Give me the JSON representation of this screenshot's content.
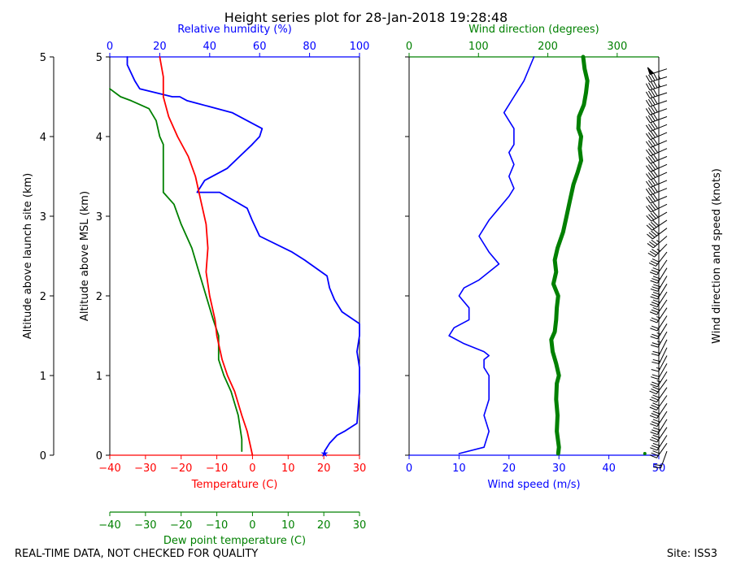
{
  "title": "Height series plot for 28-Jan-2018 19:28:48",
  "footer": {
    "left": "REAL-TIME DATA, NOT CHECKED FOR QUALITY",
    "right": "Site: ISS3"
  },
  "colors": {
    "temperature": "#ff0000",
    "dewpoint": "#008000",
    "humidity": "#0000ff",
    "wind_speed": "#0000ff",
    "wind_direction": "#008000",
    "barbs": "#000000"
  },
  "chart_data": [
    {
      "type": "line",
      "name": "thermo-panel",
      "outer_ylabel": "Altitude above launch site (km)",
      "ylabel": "Altitude above MSL (km)",
      "ylim": [
        0,
        5
      ],
      "yticks": [
        "0",
        "1",
        "2",
        "3",
        "4",
        "5"
      ],
      "x_top": {
        "label": "Relative humidity (%)",
        "range": [
          0,
          100
        ],
        "ticks": [
          "0",
          "20",
          "40",
          "60",
          "80",
          "100"
        ]
      },
      "x_bottom": {
        "label": "Temperature (C)",
        "range": [
          -40,
          30
        ],
        "ticks": [
          "−40",
          "−30",
          "−20",
          "−10",
          "0",
          "10",
          "20",
          "30"
        ]
      },
      "x_extra": {
        "label": "Dew point temperature (C)",
        "range": [
          -40,
          30
        ],
        "ticks": [
          "−40",
          "−30",
          "−20",
          "−10",
          "0",
          "10",
          "20",
          "30"
        ]
      },
      "series": [
        {
          "name": "Temperature",
          "color": "#ff0000",
          "x": [
            0,
            -1.5,
            -3,
            -5,
            -7,
            -8.5,
            -10,
            -10.5,
            -12,
            -13,
            -12.5,
            -13,
            -14.5,
            -16,
            -18,
            -21,
            -23.5,
            -25,
            -25,
            -26
          ],
          "y": [
            0,
            0.3,
            0.5,
            0.8,
            1.0,
            1.2,
            1.5,
            1.7,
            2.0,
            2.3,
            2.6,
            2.9,
            3.2,
            3.5,
            3.75,
            4.0,
            4.25,
            4.5,
            4.75,
            5.0
          ]
        },
        {
          "name": "Dew point temperature",
          "color": "#008000",
          "x": [
            -3,
            -3,
            -4,
            -6,
            -8,
            -9.5,
            -9.5,
            -11,
            -13,
            -15,
            -17,
            -20,
            -22,
            -25,
            -25,
            -25,
            -25,
            -26,
            -27,
            -29,
            -34,
            -37,
            -40
          ],
          "y": [
            0.05,
            0.2,
            0.5,
            0.8,
            1.0,
            1.2,
            1.5,
            1.7,
            2.0,
            2.3,
            2.6,
            2.9,
            3.15,
            3.3,
            3.5,
            3.7,
            3.9,
            4.0,
            4.2,
            4.35,
            4.45,
            4.5,
            4.6
          ]
        },
        {
          "name": "Relative humidity",
          "color": "#0000ff",
          "x": [
            86,
            88,
            91,
            94,
            99,
            100,
            100,
            99,
            100,
            100,
            93,
            90,
            88,
            87,
            78,
            73,
            60,
            57,
            55,
            44,
            35,
            38,
            47,
            52,
            57,
            60,
            61,
            58,
            49,
            31,
            28,
            25,
            12,
            10,
            7,
            7
          ],
          "y": [
            0.05,
            0.15,
            0.25,
            0.3,
            0.4,
            0.8,
            1.1,
            1.3,
            1.5,
            1.65,
            1.8,
            1.95,
            2.1,
            2.25,
            2.45,
            2.55,
            2.75,
            2.95,
            3.1,
            3.3,
            3.3,
            3.45,
            3.6,
            3.75,
            3.9,
            4.0,
            4.1,
            4.15,
            4.3,
            4.45,
            4.5,
            4.5,
            4.6,
            4.7,
            4.9,
            5.0
          ]
        }
      ]
    },
    {
      "type": "line",
      "name": "wind-panel",
      "ylim": [
        0,
        5
      ],
      "x_top": {
        "label": "Wind direction (degrees)",
        "range": [
          0,
          360
        ],
        "ticks": [
          "0",
          "100",
          "200",
          "300"
        ]
      },
      "x_bottom": {
        "label": "Wind speed (m/s)",
        "range": [
          0,
          50
        ],
        "ticks": [
          "0",
          "10",
          "20",
          "30",
          "40",
          "50"
        ]
      },
      "right_label": "Wind direction and speed (knots)",
      "series": [
        {
          "name": "Wind speed",
          "color": "#0000ff",
          "x": [
            10,
            15,
            16,
            15,
            16,
            16,
            16,
            15,
            15,
            16,
            15,
            11,
            8,
            9,
            12,
            12,
            10,
            11,
            14,
            18,
            16,
            14,
            16,
            18,
            20,
            21,
            20,
            21,
            20,
            21,
            21,
            21,
            20,
            19,
            20,
            21,
            23,
            25
          ],
          "y": [
            0.02,
            0.1,
            0.3,
            0.5,
            0.7,
            0.9,
            1.0,
            1.1,
            1.2,
            1.25,
            1.3,
            1.4,
            1.5,
            1.6,
            1.7,
            1.85,
            2.0,
            2.1,
            2.2,
            2.4,
            2.55,
            2.75,
            2.95,
            3.1,
            3.25,
            3.35,
            3.5,
            3.65,
            3.8,
            3.9,
            4.0,
            4.1,
            4.2,
            4.3,
            4.4,
            4.5,
            4.7,
            5.0
          ]
        },
        {
          "name": "Wind direction",
          "color": "#008000",
          "x": [
            215,
            216,
            213,
            214,
            212,
            213,
            216,
            212,
            207,
            205,
            210,
            212,
            213,
            215,
            208,
            212,
            210,
            214,
            222,
            227,
            232,
            237,
            243,
            248,
            246,
            248,
            244,
            245,
            252,
            255,
            257,
            253,
            251
          ],
          "y": [
            0.02,
            0.1,
            0.3,
            0.5,
            0.7,
            0.9,
            1.0,
            1.15,
            1.3,
            1.45,
            1.55,
            1.7,
            1.85,
            2.0,
            2.15,
            2.3,
            2.45,
            2.6,
            2.8,
            3.0,
            3.2,
            3.4,
            3.55,
            3.7,
            3.85,
            4.0,
            4.1,
            4.25,
            4.4,
            4.55,
            4.7,
            4.85,
            5.0
          ]
        }
      ]
    }
  ],
  "wind_barbs": {
    "alt": [
      0.05,
      0.15,
      0.25,
      0.35,
      0.45,
      0.55,
      0.65,
      0.75,
      0.85,
      0.95,
      1.05,
      1.15,
      1.25,
      1.35,
      1.45,
      1.55,
      1.65,
      1.75,
      1.85,
      1.95,
      2.05,
      2.15,
      2.25,
      2.35,
      2.45,
      2.55,
      2.65,
      2.75,
      2.85,
      2.95,
      3.05,
      3.15,
      3.25,
      3.35,
      3.45,
      3.55,
      3.65,
      3.75,
      3.85,
      3.95,
      4.05,
      4.15,
      4.25,
      4.35,
      4.45,
      4.55,
      4.65,
      4.75,
      4.85
    ],
    "dir": [
      200,
      215,
      213,
      214,
      212,
      213,
      214,
      215,
      215,
      216,
      212,
      210,
      208,
      206,
      207,
      210,
      212,
      213,
      214,
      214,
      213,
      212,
      211,
      212,
      214,
      218,
      224,
      229,
      233,
      236,
      240,
      244,
      247,
      248,
      247,
      246,
      246,
      247,
      246,
      247,
      247,
      248,
      250,
      250,
      251,
      252,
      253,
      253,
      252
    ],
    "spd_kt": [
      20,
      31,
      30,
      31,
      30,
      30,
      30,
      30,
      30,
      29,
      24,
      20,
      16,
      18,
      22,
      24,
      24,
      22,
      25,
      32,
      32,
      30,
      30,
      28,
      30,
      32,
      34,
      36,
      38,
      38,
      40,
      40,
      40,
      40,
      41,
      41,
      41,
      40,
      40,
      40,
      40,
      40,
      41,
      40,
      40,
      42,
      45,
      47,
      48
    ]
  }
}
